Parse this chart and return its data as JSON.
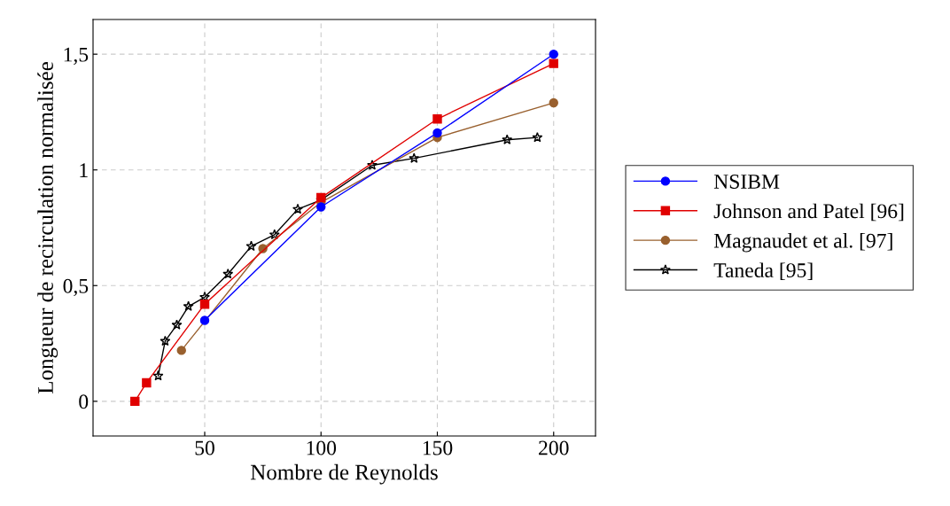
{
  "chart_data": {
    "type": "line",
    "xlabel": "Nombre de Reynolds",
    "ylabel": "Longueur de recirculation normalisée",
    "xlim": [
      2,
      218
    ],
    "ylim": [
      -0.15,
      1.65
    ],
    "xticks": [
      50,
      100,
      150,
      200
    ],
    "yticks": [
      0,
      {
        "value": 0.5,
        "label": "0,5"
      },
      1,
      {
        "value": 1.5,
        "label": "1,5"
      }
    ],
    "grid": true,
    "legend": "right",
    "line_style": "solid",
    "series": [
      {
        "name": "NSIBM",
        "color": "#0000ff",
        "marker": "circle",
        "x": [
          50,
          100,
          150,
          200
        ],
        "values": [
          0.35,
          0.84,
          1.16,
          1.5
        ]
      },
      {
        "name": "Johnson and Patel [96]",
        "color": "#e00000",
        "marker": "square",
        "x": [
          20,
          25,
          50,
          100,
          150,
          200
        ],
        "values": [
          0,
          0.08,
          0.42,
          0.88,
          1.22,
          1.46
        ]
      },
      {
        "name": "Magnaudet et al. [97]",
        "color": "#99602e",
        "marker": "circle",
        "x": [
          40,
          75,
          100,
          150,
          200
        ],
        "values": [
          0.22,
          0.66,
          0.86,
          1.14,
          1.29
        ]
      },
      {
        "name": "Taneda [95]",
        "color": "#000000",
        "marker": "star",
        "x": [
          30,
          33,
          38,
          43,
          50,
          60,
          70,
          80,
          90,
          100,
          122,
          140,
          180,
          193
        ],
        "values": [
          0.11,
          0.26,
          0.33,
          0.41,
          0.45,
          0.55,
          0.67,
          0.72,
          0.83,
          0.87,
          1.02,
          1.05,
          1.13,
          1.14
        ]
      }
    ]
  }
}
